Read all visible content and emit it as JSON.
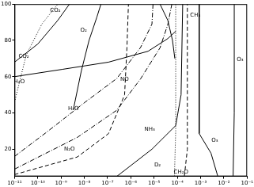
{
  "chart_data": {
    "type": "line",
    "log": "x",
    "grid": false,
    "color": "#000000",
    "xlim": [
      1e-11,
      0.1
    ],
    "xticks": [
      {
        "value": 1e-11,
        "label": "10⁻¹¹"
      },
      {
        "value": 1e-10,
        "label": "10⁻¹⁰"
      },
      {
        "value": 1e-09,
        "label": "10⁻⁹"
      },
      {
        "value": 1e-08,
        "label": "10⁻⁸"
      },
      {
        "value": 1e-07,
        "label": "10⁻⁷"
      },
      {
        "value": 1e-06,
        "label": "10⁻⁶"
      },
      {
        "value": 1e-05,
        "label": "10⁻⁵"
      },
      {
        "value": 0.0001,
        "label": "10⁻⁴"
      },
      {
        "value": 0.001,
        "label": "10⁻³"
      },
      {
        "value": 0.01,
        "label": "10⁻²"
      },
      {
        "value": 0.1,
        "label": "10⁻¹"
      }
    ],
    "ylim": [
      5,
      100
    ],
    "yticks": [
      20,
      40,
      60,
      80,
      100
    ],
    "series": [
      {
        "line_style": "dotted",
        "x": [
          1e-11,
          3.2e-11,
          1.5e-10,
          7.2e-10
        ],
        "values": [
          46,
          72,
          89,
          100
        ]
      },
      {
        "line_style": "solid",
        "x": [
          1e-11,
          1e-10,
          7.2e-10,
          2.3e-09
        ],
        "values": [
          68,
          78,
          91,
          100
        ]
      },
      {
        "line_style": "solid",
        "x": [
          3.4e-09,
          7.4e-09,
          1.6e-08,
          3.5e-08,
          5.2e-08
        ],
        "values": [
          42,
          63,
          80,
          93,
          100
        ]
      },
      {
        "line_style": "solid",
        "x": [
          1.8e-05,
          3.9e-05,
          6.2e-05,
          7.8e-05
        ],
        "values": [
          100,
          91,
          80,
          70
        ]
      },
      {
        "line_style": "solid",
        "x": [
          1e-11,
          1.1e-09,
          1.1e-07,
          5.5e-06,
          3.9e-05,
          8.5e-05
        ],
        "values": [
          60,
          64,
          68,
          74,
          81,
          85
        ]
      },
      {
        "line_style": "dashdot",
        "x": [
          1e-11,
          2.2e-10,
          1.1e-08,
          2.5e-07,
          2.6e-06,
          8.1e-06,
          9e-06
        ],
        "values": [
          16,
          29,
          46,
          59,
          76,
          89,
          100
        ]
      },
      {
        "line_style": "dashdot",
        "x": [
          1e-11,
          5e-09,
          2.5e-07,
          2.6e-06,
          1.8e-05,
          3.9e-05,
          5.8e-05
        ],
        "values": [
          9,
          26.5,
          41.5,
          58.7,
          75.9,
          88.8,
          100
        ]
      },
      {
        "line_style": "dashed",
        "x": [
          1e-11,
          5e-09,
          1.1e-07,
          5.4e-07,
          6.8e-07,
          7.9e-07
        ],
        "values": [
          6,
          15.7,
          28.6,
          50,
          76,
          100
        ]
      },
      {
        "line_style": "solid",
        "x": [
          2.5e-07,
          8.1e-06,
          8.5e-05,
          0.000145,
          0.00017
        ],
        "values": [
          5,
          20,
          33,
          50,
          100
        ]
      },
      {
        "line_style": "dotted",
        "x": [
          7.5e-05,
          8.5e-05,
          8.5e-05
        ],
        "values": [
          5,
          30,
          100
        ]
      },
      {
        "line_style": "dashed",
        "x": [
          0.0002,
          0.00027,
          0.00027
        ],
        "values": [
          5,
          20,
          100
        ]
      },
      {
        "line_style": "solid",
        "x": [
          0.00087,
          0.00087,
          0.0028,
          0.0055
        ],
        "values": [
          100,
          28.6,
          17.8,
          5
        ]
      },
      {
        "line_style": "solid",
        "x": [
          0.025,
          0.028,
          0.028
        ],
        "values": [
          5,
          40,
          100
        ]
      }
    ],
    "annotations": [
      {
        "text": "CO₂",
        "x": 2.5e-11,
        "y": 71
      },
      {
        "text": "CO₂",
        "x": 5.7e-10,
        "y": 96.5
      },
      {
        "text": "O₂",
        "x": 9.3e-09,
        "y": 85.4
      },
      {
        "text": "CH₄",
        "x": 0.00059,
        "y": 94
      },
      {
        "text": "H₂O",
        "x": 1.6e-11,
        "y": 57
      },
      {
        "text": "H₂O",
        "x": 3.4e-09,
        "y": 42.4
      },
      {
        "text": "NO",
        "x": 5.4e-07,
        "y": 58.7
      },
      {
        "text": "N₂O",
        "x": 2.3e-09,
        "y": 20
      },
      {
        "text": "NH₃",
        "x": 6.5e-06,
        "y": 30.8
      },
      {
        "text": "D₂",
        "x": 1.4e-05,
        "y": 11.4
      },
      {
        "text": "CH₂O",
        "x": 0.000145,
        "y": 7.5
      },
      {
        "text": "O₃",
        "x": 0.05,
        "y": 69.5
      },
      {
        "text": "O₃",
        "x": 0.0041,
        "y": 25
      }
    ]
  }
}
